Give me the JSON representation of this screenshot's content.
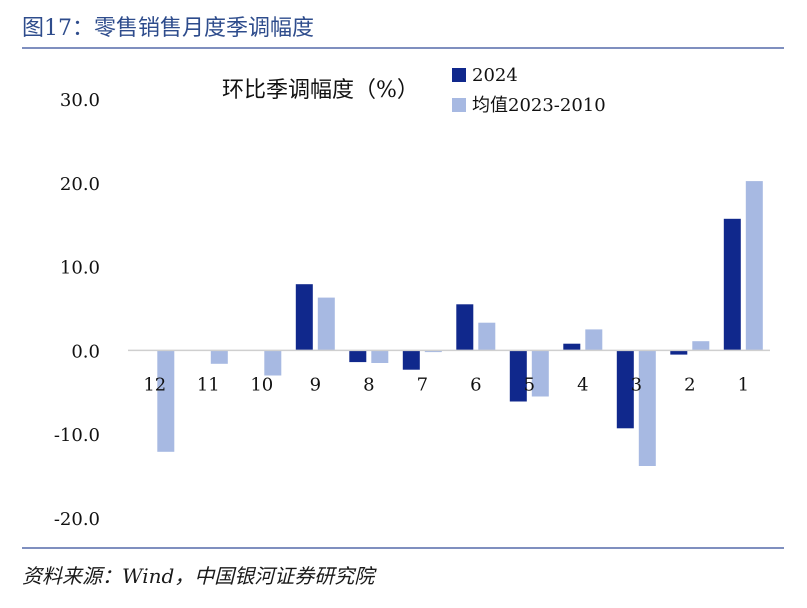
{
  "figure_title": "图17：零售销售月度季调幅度",
  "source": "资料来源：Wind，中国银河证券研究院",
  "colors": {
    "s2024": "#10288C",
    "avg": "#A7B9E2",
    "accent": "#2E4C8C",
    "rule": "#7F8FBF"
  },
  "chart_data": {
    "type": "bar",
    "title": "环比季调幅度（%）",
    "xlabel": "",
    "ylabel": "",
    "ylim": [
      -20,
      30
    ],
    "yticks": [
      "30.0",
      "20.0",
      "10.0",
      "0.0",
      "-10.0",
      "-20.0"
    ],
    "categories": [
      "12",
      "11",
      "10",
      "9",
      "8",
      "7",
      "6",
      "5",
      "4",
      "3",
      "2",
      "1"
    ],
    "series": [
      {
        "name": "2024",
        "color": "#10288C",
        "values": [
          null,
          null,
          null,
          7.9,
          -1.4,
          -2.3,
          5.5,
          -6.1,
          0.8,
          -9.3,
          -0.5,
          15.7
        ]
      },
      {
        "name": "均值2023-2010",
        "color": "#A7B9E2",
        "values": [
          -12.1,
          -1.6,
          -3.0,
          6.3,
          -1.5,
          -0.2,
          3.3,
          -5.5,
          2.5,
          -13.8,
          1.1,
          20.2
        ]
      }
    ],
    "legend_position": "top-right",
    "grid": false
  }
}
